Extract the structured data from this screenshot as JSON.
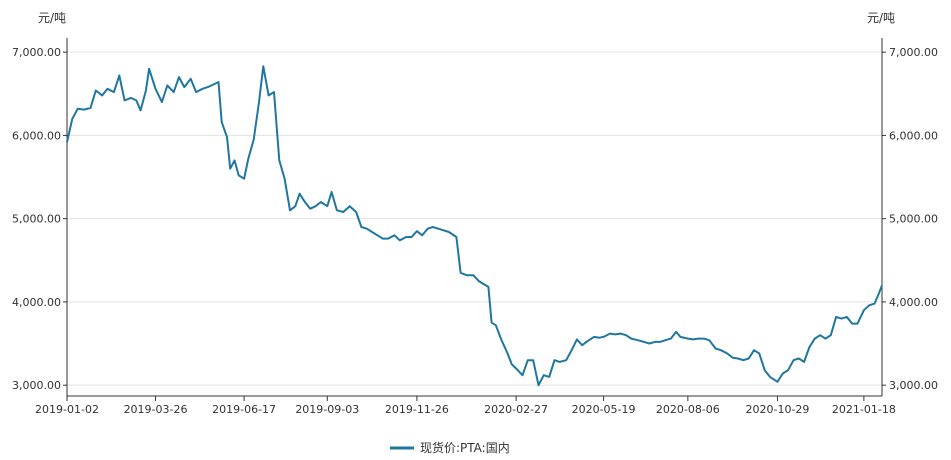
{
  "chart_data": {
    "type": "line",
    "y_unit_left": "元/吨",
    "y_unit_right": "元/吨",
    "ylim": [
      2870,
      7170
    ],
    "y_ticks": [
      3000,
      4000,
      5000,
      6000,
      7000
    ],
    "y_tick_labels": [
      "3,000.00",
      "4,000.00",
      "5,000.00",
      "6,000.00",
      "7,000.00"
    ],
    "x_tick_labels": [
      "2019-01-02",
      "2019-03-26",
      "2019-06-17",
      "2019-09-03",
      "2019-11-26",
      "2020-02-27",
      "2020-05-19",
      "2020-08-06",
      "2020-10-29",
      "2021-01-18"
    ],
    "grid": "horizontal",
    "legend_position": "bottom",
    "series": [
      {
        "name": "现货价:PTA:国内",
        "color": "#1f77a0",
        "points": [
          [
            "2019-01-02",
            5920
          ],
          [
            "2019-01-07",
            6200
          ],
          [
            "2019-01-12",
            6320
          ],
          [
            "2019-01-18",
            6310
          ],
          [
            "2019-01-24",
            6330
          ],
          [
            "2019-01-29",
            6540
          ],
          [
            "2019-02-04",
            6480
          ],
          [
            "2019-02-09",
            6560
          ],
          [
            "2019-02-15",
            6520
          ],
          [
            "2019-02-20",
            6720
          ],
          [
            "2019-02-25",
            6420
          ],
          [
            "2019-03-03",
            6450
          ],
          [
            "2019-03-08",
            6420
          ],
          [
            "2019-03-12",
            6300
          ],
          [
            "2019-03-17",
            6540
          ],
          [
            "2019-03-20",
            6800
          ],
          [
            "2019-03-26",
            6560
          ],
          [
            "2019-04-01",
            6400
          ],
          [
            "2019-04-06",
            6600
          ],
          [
            "2019-04-12",
            6520
          ],
          [
            "2019-04-17",
            6700
          ],
          [
            "2019-04-22",
            6580
          ],
          [
            "2019-04-28",
            6680
          ],
          [
            "2019-05-03",
            6520
          ],
          [
            "2019-05-09",
            6560
          ],
          [
            "2019-05-14",
            6580
          ],
          [
            "2019-05-19",
            6610
          ],
          [
            "2019-05-24",
            6640
          ],
          [
            "2019-05-27",
            6160
          ],
          [
            "2019-06-01",
            5980
          ],
          [
            "2019-06-04",
            5600
          ],
          [
            "2019-06-08",
            5700
          ],
          [
            "2019-06-12",
            5520
          ],
          [
            "2019-06-17",
            5480
          ],
          [
            "2019-06-21",
            5720
          ],
          [
            "2019-06-26",
            5950
          ],
          [
            "2019-07-01",
            6400
          ],
          [
            "2019-07-05",
            6830
          ],
          [
            "2019-07-10",
            6480
          ],
          [
            "2019-07-15",
            6520
          ],
          [
            "2019-07-20",
            5700
          ],
          [
            "2019-07-25",
            5480
          ],
          [
            "2019-07-30",
            5100
          ],
          [
            "2019-08-04",
            5150
          ],
          [
            "2019-08-08",
            5300
          ],
          [
            "2019-08-13",
            5200
          ],
          [
            "2019-08-18",
            5120
          ],
          [
            "2019-08-23",
            5150
          ],
          [
            "2019-08-28",
            5200
          ],
          [
            "2019-09-03",
            5150
          ],
          [
            "2019-09-07",
            5320
          ],
          [
            "2019-09-12",
            5100
          ],
          [
            "2019-09-18",
            5080
          ],
          [
            "2019-09-24",
            5150
          ],
          [
            "2019-09-30",
            5080
          ],
          [
            "2019-10-05",
            4900
          ],
          [
            "2019-10-10",
            4880
          ],
          [
            "2019-10-15",
            4840
          ],
          [
            "2019-10-20",
            4800
          ],
          [
            "2019-10-25",
            4760
          ],
          [
            "2019-10-30",
            4760
          ],
          [
            "2019-11-05",
            4800
          ],
          [
            "2019-11-10",
            4740
          ],
          [
            "2019-11-16",
            4780
          ],
          [
            "2019-11-21",
            4780
          ],
          [
            "2019-11-26",
            4850
          ],
          [
            "2019-12-01",
            4800
          ],
          [
            "2019-12-06",
            4880
          ],
          [
            "2019-12-11",
            4900
          ],
          [
            "2019-12-16",
            4880
          ],
          [
            "2019-12-21",
            4860
          ],
          [
            "2019-12-26",
            4840
          ],
          [
            "2020-01-02",
            4780
          ],
          [
            "2020-01-06",
            4350
          ],
          [
            "2020-01-12",
            4320
          ],
          [
            "2020-01-18",
            4320
          ],
          [
            "2020-01-23",
            4250
          ],
          [
            "2020-02-01",
            4180
          ],
          [
            "2020-02-04",
            3750
          ],
          [
            "2020-02-08",
            3720
          ],
          [
            "2020-02-13",
            3550
          ],
          [
            "2020-02-19",
            3380
          ],
          [
            "2020-02-23",
            3250
          ],
          [
            "2020-02-27",
            3200
          ],
          [
            "2020-03-04",
            3120
          ],
          [
            "2020-03-09",
            3300
          ],
          [
            "2020-03-14",
            3300
          ],
          [
            "2020-03-19",
            3000
          ],
          [
            "2020-03-24",
            3120
          ],
          [
            "2020-03-29",
            3100
          ],
          [
            "2020-04-03",
            3300
          ],
          [
            "2020-04-08",
            3280
          ],
          [
            "2020-04-14",
            3300
          ],
          [
            "2020-04-19",
            3420
          ],
          [
            "2020-04-24",
            3550
          ],
          [
            "2020-04-29",
            3480
          ],
          [
            "2020-05-04",
            3530
          ],
          [
            "2020-05-10",
            3580
          ],
          [
            "2020-05-15",
            3570
          ],
          [
            "2020-05-19",
            3580
          ],
          [
            "2020-05-25",
            3620
          ],
          [
            "2020-05-30",
            3610
          ],
          [
            "2020-06-04",
            3620
          ],
          [
            "2020-06-09",
            3600
          ],
          [
            "2020-06-14",
            3560
          ],
          [
            "2020-06-20",
            3540
          ],
          [
            "2020-06-26",
            3520
          ],
          [
            "2020-07-01",
            3500
          ],
          [
            "2020-07-06",
            3520
          ],
          [
            "2020-07-11",
            3520
          ],
          [
            "2020-07-16",
            3540
          ],
          [
            "2020-07-21",
            3560
          ],
          [
            "2020-07-26",
            3640
          ],
          [
            "2020-07-30",
            3580
          ],
          [
            "2020-08-06",
            3560
          ],
          [
            "2020-08-11",
            3550
          ],
          [
            "2020-08-16",
            3560
          ],
          [
            "2020-08-21",
            3560
          ],
          [
            "2020-08-26",
            3540
          ],
          [
            "2020-09-01",
            3440
          ],
          [
            "2020-09-06",
            3420
          ],
          [
            "2020-09-12",
            3380
          ],
          [
            "2020-09-17",
            3330
          ],
          [
            "2020-09-22",
            3320
          ],
          [
            "2020-09-27",
            3300
          ],
          [
            "2020-10-02",
            3320
          ],
          [
            "2020-10-07",
            3420
          ],
          [
            "2020-10-12",
            3380
          ],
          [
            "2020-10-17",
            3180
          ],
          [
            "2020-10-22",
            3100
          ],
          [
            "2020-10-29",
            3040
          ],
          [
            "2020-11-03",
            3140
          ],
          [
            "2020-11-08",
            3180
          ],
          [
            "2020-11-13",
            3300
          ],
          [
            "2020-11-18",
            3320
          ],
          [
            "2020-11-23",
            3280
          ],
          [
            "2020-11-28",
            3460
          ],
          [
            "2020-12-03",
            3560
          ],
          [
            "2020-12-08",
            3600
          ],
          [
            "2020-12-13",
            3560
          ],
          [
            "2020-12-18",
            3600
          ],
          [
            "2020-12-23",
            3820
          ],
          [
            "2020-12-28",
            3800
          ],
          [
            "2021-01-02",
            3820
          ],
          [
            "2021-01-07",
            3740
          ],
          [
            "2021-01-12",
            3740
          ],
          [
            "2021-01-18",
            3900
          ],
          [
            "2021-01-23",
            3960
          ],
          [
            "2021-01-28",
            3980
          ],
          [
            "2021-02-01",
            4100
          ],
          [
            "2021-02-04",
            4200
          ]
        ]
      }
    ]
  }
}
